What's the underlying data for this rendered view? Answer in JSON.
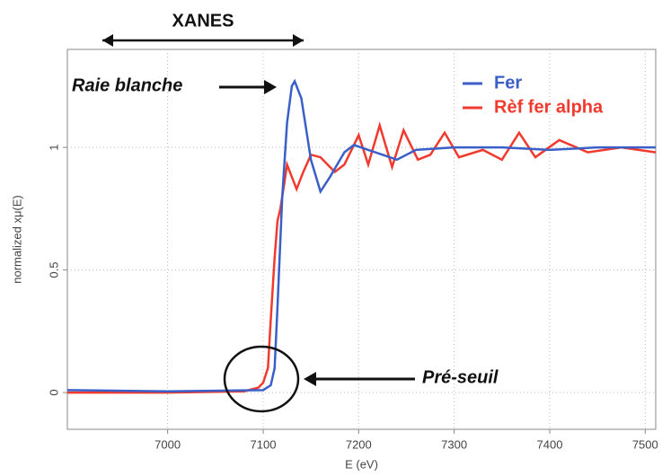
{
  "chart_data": {
    "type": "line",
    "xlabel": "E (eV)",
    "ylabel": "normalized xμ(E)",
    "xlim": [
      6895,
      7511
    ],
    "ylim": [
      -0.15,
      1.4
    ],
    "xticks": [
      7000,
      7100,
      7200,
      7300,
      7400,
      7500
    ],
    "yticks": [
      0,
      0.5,
      1
    ],
    "grid": true,
    "legend": "upper right",
    "series": [
      {
        "name": "Fer",
        "color": "#3a5fc8",
        "x": [
          6895,
          7000,
          7100,
          7108,
          7112,
          7115,
          7120,
          7125,
          7130,
          7133,
          7140,
          7150,
          7160,
          7170,
          7185,
          7195,
          7210,
          7225,
          7240,
          7260,
          7300,
          7350,
          7400,
          7450,
          7511
        ],
        "values": [
          0.01,
          0.005,
          0.01,
          0.03,
          0.1,
          0.35,
          0.8,
          1.1,
          1.25,
          1.27,
          1.2,
          0.95,
          0.82,
          0.88,
          0.98,
          1.01,
          0.99,
          0.97,
          0.95,
          0.99,
          1.0,
          1.0,
          0.99,
          1.0,
          1.0
        ]
      },
      {
        "name": "Rèf fer alpha",
        "color": "#f03a2e",
        "x": [
          6895,
          7000,
          7080,
          7095,
          7100,
          7105,
          7108,
          7112,
          7115,
          7118,
          7122,
          7125,
          7130,
          7135,
          7142,
          7150,
          7160,
          7175,
          7185,
          7200,
          7210,
          7222,
          7235,
          7247,
          7262,
          7275,
          7290,
          7305,
          7330,
          7350,
          7368,
          7385,
          7410,
          7440,
          7475,
          7511
        ],
        "values": [
          0,
          0,
          0.005,
          0.02,
          0.04,
          0.1,
          0.3,
          0.55,
          0.7,
          0.75,
          0.85,
          0.93,
          0.88,
          0.83,
          0.9,
          0.97,
          0.96,
          0.9,
          0.93,
          1.05,
          0.93,
          1.09,
          0.92,
          1.07,
          0.95,
          0.97,
          1.06,
          0.96,
          0.99,
          0.95,
          1.06,
          0.96,
          1.03,
          0.98,
          1.0,
          0.98
        ]
      }
    ],
    "annotations": [
      "XANES",
      "Raie blanche",
      "Pré-seuil"
    ]
  }
}
